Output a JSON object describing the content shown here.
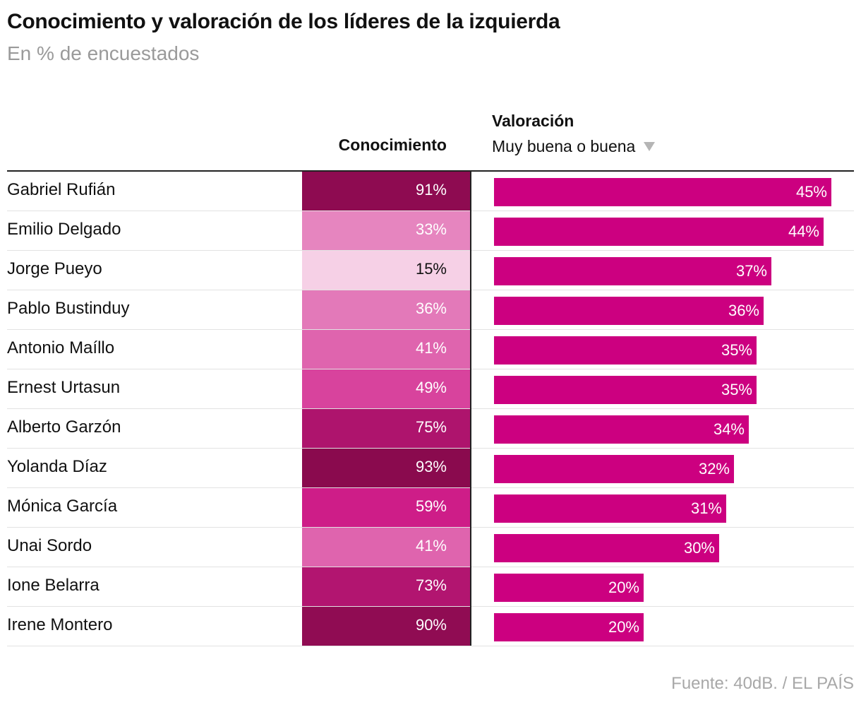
{
  "title": "Conocimiento y valoración de los líderes de la izquierda",
  "subtitle": "En % de encuestados",
  "columns": {
    "conocimiento": "Conocimiento",
    "valoracion": "Valoración",
    "valoracion_sub": "Muy buena o buena",
    "sort_icon": "sort-descending-triangle-icon"
  },
  "source": "Fuente: 40dB. / EL PAÍS",
  "colors": {
    "bar": "#cc0080",
    "heat_low": "#f6d0e6",
    "heat_high": "#8a0a4e"
  },
  "chart_data": {
    "type": "table",
    "categories": [
      "Gabriel Rufián",
      "Emilio Delgado",
      "Jorge Pueyo",
      "Pablo Bustinduy",
      "Antonio Maíllo",
      "Ernest Urtasun",
      "Alberto Garzón",
      "Yolanda Díaz",
      "Mónica García",
      "Unai Sordo",
      "Ione Belarra",
      "Irene Montero"
    ],
    "series": [
      {
        "name": "Conocimiento",
        "values": [
          91,
          33,
          15,
          36,
          41,
          49,
          75,
          93,
          59,
          41,
          73,
          90
        ],
        "labels": [
          "91%",
          "33%",
          "15%",
          "36%",
          "41%",
          "49%",
          "75%",
          "93%",
          "59%",
          "41%",
          "73%",
          "90%"
        ]
      },
      {
        "name": "Valoración",
        "values": [
          45,
          44,
          37,
          36,
          35,
          35,
          34,
          32,
          31,
          30,
          20,
          20
        ],
        "labels": [
          "45%",
          "44%",
          "37%",
          "36%",
          "35%",
          "35%",
          "34%",
          "32%",
          "31%",
          "30%",
          "20%",
          "20%"
        ]
      }
    ],
    "valoracion_xlim": [
      0,
      45
    ]
  }
}
